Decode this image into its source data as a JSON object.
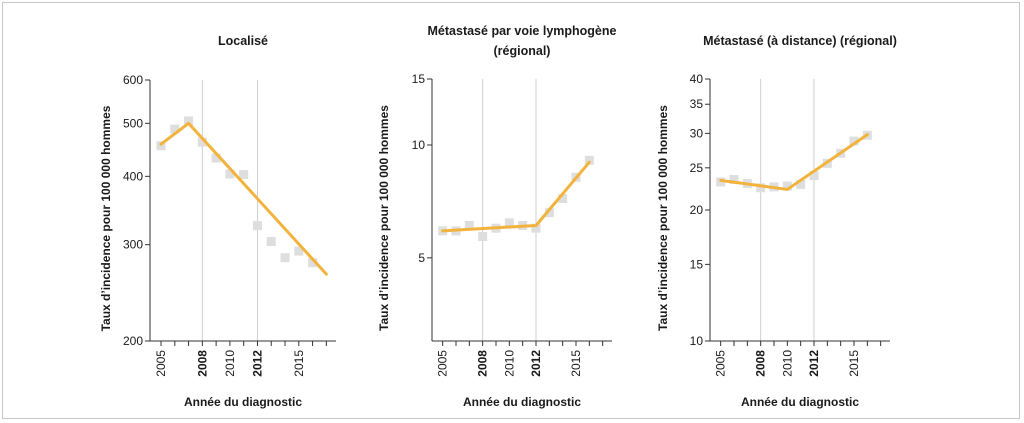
{
  "colors": {
    "line": "#F2B33D",
    "points": "#DEDEDE",
    "axis": "#333333",
    "gridline": "#CFCFCF"
  },
  "chart_data": [
    {
      "type": "scatter",
      "title": [
        "Localisé"
      ],
      "xlabel": "Année du diagnostic",
      "ylabel": "Taux d’incidence pour 100 000 hommes",
      "yscale": "log",
      "ylim": [
        200,
        600
      ],
      "yticks": [
        200,
        300,
        400,
        500,
        600
      ],
      "xlim": [
        2004,
        2017.7
      ],
      "xticks": [
        2005,
        2008,
        2010,
        2012,
        2015
      ],
      "bold_xticks": [
        2008,
        2012
      ],
      "vertical_gridlines_at": [
        2008,
        2012
      ],
      "points": {
        "x": [
          2005,
          2006,
          2007,
          2008,
          2009,
          2010,
          2011,
          2012,
          2013,
          2014,
          2015,
          2016,
          2017
        ],
        "y": [
          455,
          488,
          505,
          462,
          432,
          404,
          403,
          325,
          304,
          284,
          292,
          278,
          null
        ]
      },
      "fit_line": {
        "x": [
          2005,
          2007,
          2017
        ],
        "y": [
          458,
          500,
          265
        ]
      }
    },
    {
      "type": "scatter",
      "title": [
        "Métastasé par voie lymphogène",
        "(régional)"
      ],
      "xlabel": "Année du diagnostic",
      "ylabel": "Taux d’incidence pour 100 000 hommes",
      "yscale": "log",
      "ylim": [
        3,
        15
      ],
      "yticks": [
        5,
        10,
        15
      ],
      "ylim_labels": [
        15
      ],
      "xlim": [
        2004,
        2017.7
      ],
      "xticks": [
        2005,
        2008,
        2010,
        2012,
        2015
      ],
      "bold_xticks": [
        2008,
        2012
      ],
      "vertical_gridlines_at": [
        2008,
        2012
      ],
      "points": {
        "x": [
          2005,
          2006,
          2007,
          2008,
          2009,
          2010,
          2011,
          2012,
          2013,
          2014,
          2015,
          2016
        ],
        "y": [
          5.9,
          5.9,
          6.1,
          5.7,
          6.0,
          6.2,
          6.1,
          6.0,
          6.6,
          7.2,
          8.2,
          9.1
        ]
      },
      "fit_line": {
        "x": [
          2005,
          2012,
          2016
        ],
        "y": [
          5.9,
          6.1,
          9.0
        ]
      }
    },
    {
      "type": "scatter",
      "title": [
        "Métastasé (à distance) (régional)"
      ],
      "xlabel": "Année du diagnostic",
      "ylabel": "Taux d’incidence pour 100 000 hommes",
      "yscale": "log",
      "ylim": [
        10,
        40
      ],
      "yticks": [
        10,
        15,
        20,
        25,
        30,
        35,
        40
      ],
      "xlim": [
        2004,
        2017.7
      ],
      "xticks": [
        2005,
        2008,
        2010,
        2012,
        2015
      ],
      "bold_xticks": [
        2008,
        2012
      ],
      "vertical_gridlines_at": [
        2008,
        2012
      ],
      "points": {
        "x": [
          2005,
          2006,
          2007,
          2008,
          2009,
          2010,
          2011,
          2012,
          2013,
          2014,
          2015,
          2016
        ],
        "y": [
          23.2,
          23.5,
          23.0,
          22.5,
          22.6,
          22.7,
          22.9,
          24.0,
          25.6,
          27.0,
          28.8,
          29.7
        ]
      },
      "fit_line": {
        "x": [
          2005,
          2010,
          2016
        ],
        "y": [
          23.4,
          22.3,
          29.8
        ]
      }
    }
  ]
}
